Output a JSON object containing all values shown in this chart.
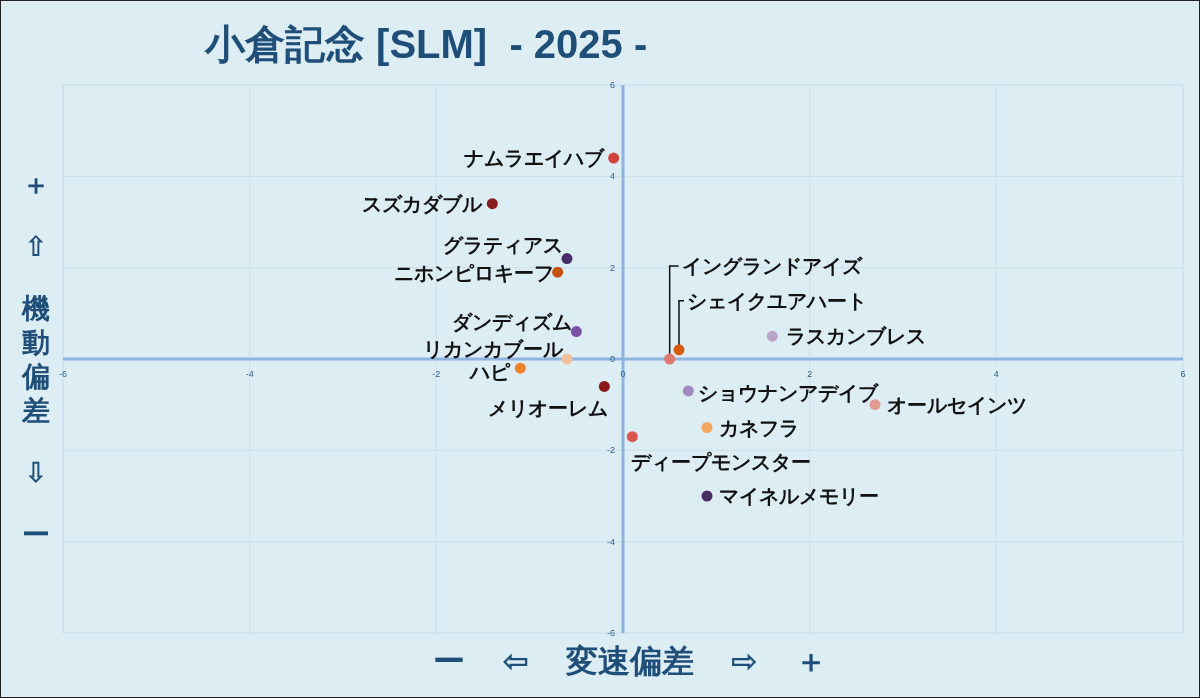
{
  "chart_data": {
    "type": "scatter",
    "title": "小倉記念 [SLM]  - 2025 -",
    "xlabel": "ー ⇦ 変速偏差 ⇨ ＋",
    "ylabel": "＋ ⇧ 機動偏差 ⇩ ー",
    "xlim": [
      -6,
      6
    ],
    "ylim": [
      -6,
      6
    ],
    "xticks": [
      -6,
      -4,
      -2,
      0,
      2,
      4,
      6
    ],
    "yticks": [
      -6,
      -4,
      -2,
      0,
      2,
      4,
      6
    ],
    "grid": true,
    "marker": "circle",
    "series": [
      {
        "name": "ナムラエイハブ",
        "color": "#d0433a",
        "x": [
          -0.1
        ],
        "values": [
          4.4
        ]
      },
      {
        "name": "スズカダブル",
        "color": "#8b1e1e",
        "x": [
          -1.4
        ],
        "values": [
          3.4
        ]
      },
      {
        "name": "グラティアス",
        "color": "#4b2d6b",
        "x": [
          -0.6
        ],
        "values": [
          2.2
        ]
      },
      {
        "name": "ニホンピロキーフ",
        "color": "#c5520f",
        "x": [
          -0.7
        ],
        "values": [
          1.9
        ]
      },
      {
        "name": "ダンディズム",
        "color": "#7b52a8",
        "x": [
          -0.5
        ],
        "values": [
          0.6
        ]
      },
      {
        "name": "リカンカブール",
        "color": "#f2c09a",
        "x": [
          -0.6
        ],
        "values": [
          0.0
        ]
      },
      {
        "name": "ハピ",
        "color": "#f0822a",
        "x": [
          -1.1
        ],
        "values": [
          -0.2
        ]
      },
      {
        "name": "メリオーレム",
        "color": "#8b1a1a",
        "x": [
          -0.2
        ],
        "values": [
          -0.6
        ]
      },
      {
        "name": "イングランドアイズ",
        "color": "#e07a70",
        "x": [
          0.5
        ],
        "values": [
          0.0
        ]
      },
      {
        "name": "シェイクユアハート",
        "color": "#d85a0a",
        "x": [
          0.6
        ],
        "values": [
          0.2
        ]
      },
      {
        "name": "ラスカンブレス",
        "color": "#b9a3c8",
        "x": [
          1.6
        ],
        "values": [
          0.5
        ]
      },
      {
        "name": "ショウナンアデイブ",
        "color": "#a08ac0",
        "x": [
          0.7
        ],
        "values": [
          -0.7
        ]
      },
      {
        "name": "オールセインツ",
        "color": "#e39a92",
        "x": [
          2.7
        ],
        "values": [
          -1.0
        ]
      },
      {
        "name": "カネフラ",
        "color": "#f4a85e",
        "x": [
          0.9
        ],
        "values": [
          -1.5
        ]
      },
      {
        "name": "ディープモンスター",
        "color": "#d9574f",
        "x": [
          0.1
        ],
        "values": [
          -1.7
        ]
      },
      {
        "name": "マイネルメモリー",
        "color": "#4a2d60",
        "x": [
          0.9
        ],
        "values": [
          -3.0
        ]
      }
    ]
  }
}
